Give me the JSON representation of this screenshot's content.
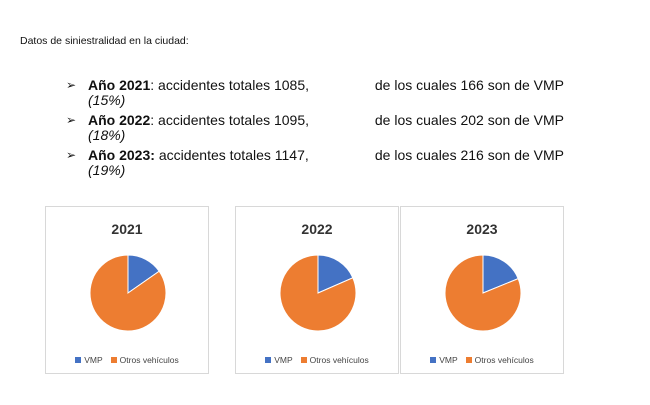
{
  "intro": "Datos de siniestralidad en la ciudad:",
  "bullets": [
    {
      "year": "Año 2021",
      "sep": ":",
      "text_left": "accidentes totales 1085,",
      "text_right": "de los cuales 166 son de VMP",
      "pct": "(15%)"
    },
    {
      "year": "Año 2022",
      "sep": ":",
      "text_left": "accidentes totales 1095,",
      "text_right": "de los cuales 202 son de VMP",
      "pct": "(18%)"
    },
    {
      "year": "Año 2023:",
      "sep": "",
      "text_left": "accidentes totales 1147,",
      "text_right": "de los cuales 216 son de VMP",
      "pct": "(19%)"
    }
  ],
  "colors": {
    "vmp": "#4472C4",
    "otros": "#ED7D31"
  },
  "chart_data": [
    {
      "type": "pie",
      "title": "2021",
      "categories": [
        "VMP",
        "Otros vehículos"
      ],
      "values": [
        166,
        919
      ]
    },
    {
      "type": "pie",
      "title": "2022",
      "categories": [
        "VMP",
        "Otros vehículos"
      ],
      "values": [
        202,
        893
      ]
    },
    {
      "type": "pie",
      "title": "2023",
      "categories": [
        "VMP",
        "Otros vehículos"
      ],
      "values": [
        216,
        931
      ]
    }
  ]
}
